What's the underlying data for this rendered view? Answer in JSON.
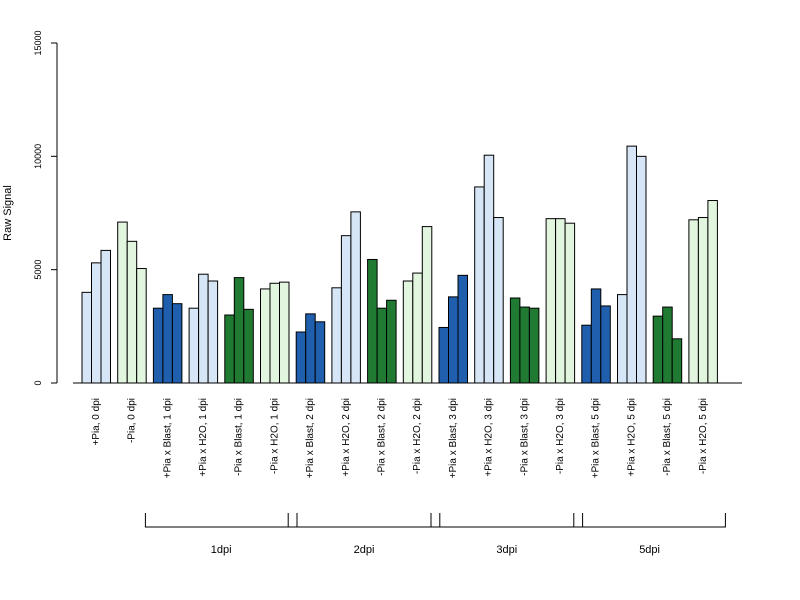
{
  "chart_data": {
    "type": "bar",
    "ylabel": "Raw Signal",
    "ylim": [
      0,
      15000
    ],
    "yticks": [
      0,
      5000,
      10000,
      15000
    ],
    "ytick_labels": [
      "0",
      "5000",
      "10000",
      "15000"
    ],
    "grid": false,
    "colors": {
      "light_blue": "#d6e6f7",
      "light_green": "#e2f5de",
      "dark_blue": "#1f5fae",
      "dark_green": "#217a32"
    },
    "groups": [
      {
        "label": "+Pia, 0 dpi",
        "color": "light_blue",
        "values": [
          4000,
          5300,
          5850
        ]
      },
      {
        "label": "-Pia, 0 dpi",
        "color": "light_green",
        "values": [
          7100,
          6250,
          5050
        ]
      },
      {
        "label": "+Pia x Blast, 1 dpi",
        "color": "dark_blue",
        "values": [
          3300,
          3900,
          3500
        ]
      },
      {
        "label": "+Pia x H2O, 1 dpi",
        "color": "light_blue",
        "values": [
          3300,
          4800,
          4500
        ]
      },
      {
        "label": "-Pia x Blast, 1 dpi",
        "color": "dark_green",
        "values": [
          3000,
          4650,
          3250
        ]
      },
      {
        "label": "-Pia x H2O, 1 dpi",
        "color": "light_green",
        "values": [
          4150,
          4400,
          4450
        ]
      },
      {
        "label": "+Pia x Blast, 2 dpi",
        "color": "dark_blue",
        "values": [
          2250,
          3050,
          2700
        ]
      },
      {
        "label": "+Pia x H2O, 2 dpi",
        "color": "light_blue",
        "values": [
          4200,
          6500,
          7550
        ]
      },
      {
        "label": "-Pia x Blast, 2 dpi",
        "color": "dark_green",
        "values": [
          5450,
          3300,
          3650
        ]
      },
      {
        "label": "-Pia x H2O, 2 dpi",
        "color": "light_green",
        "values": [
          4500,
          4850,
          6900
        ]
      },
      {
        "label": "+Pia x Blast, 3 dpi",
        "color": "dark_blue",
        "values": [
          2450,
          3800,
          4750
        ]
      },
      {
        "label": "+Pia x H2O, 3 dpi",
        "color": "light_blue",
        "values": [
          8650,
          10050,
          7300
        ]
      },
      {
        "label": "-Pia x Blast, 3 dpi",
        "color": "dark_green",
        "values": [
          3750,
          3350,
          3300
        ]
      },
      {
        "label": "-Pia x H2O, 3 dpi",
        "color": "light_green",
        "values": [
          7250,
          7250,
          7050
        ]
      },
      {
        "label": "+Pia x Blast, 5 dpi",
        "color": "dark_blue",
        "values": [
          2550,
          4150,
          3400
        ]
      },
      {
        "label": "+Pia x H2O, 5 dpi",
        "color": "light_blue",
        "values": [
          3900,
          10450,
          10000
        ]
      },
      {
        "label": "-Pia x Blast, 5 dpi",
        "color": "dark_green",
        "values": [
          2950,
          3350,
          1950
        ]
      },
      {
        "label": "-Pia x H2O, 5 dpi",
        "color": "light_green",
        "values": [
          7200,
          7300,
          8050
        ]
      }
    ],
    "timepoint_brackets": [
      {
        "label": "1dpi",
        "first_group": 2,
        "last_group": 5
      },
      {
        "label": "2dpi",
        "first_group": 6,
        "last_group": 9
      },
      {
        "label": "3dpi",
        "first_group": 10,
        "last_group": 13
      },
      {
        "label": "5dpi",
        "first_group": 14,
        "last_group": 17
      }
    ]
  }
}
